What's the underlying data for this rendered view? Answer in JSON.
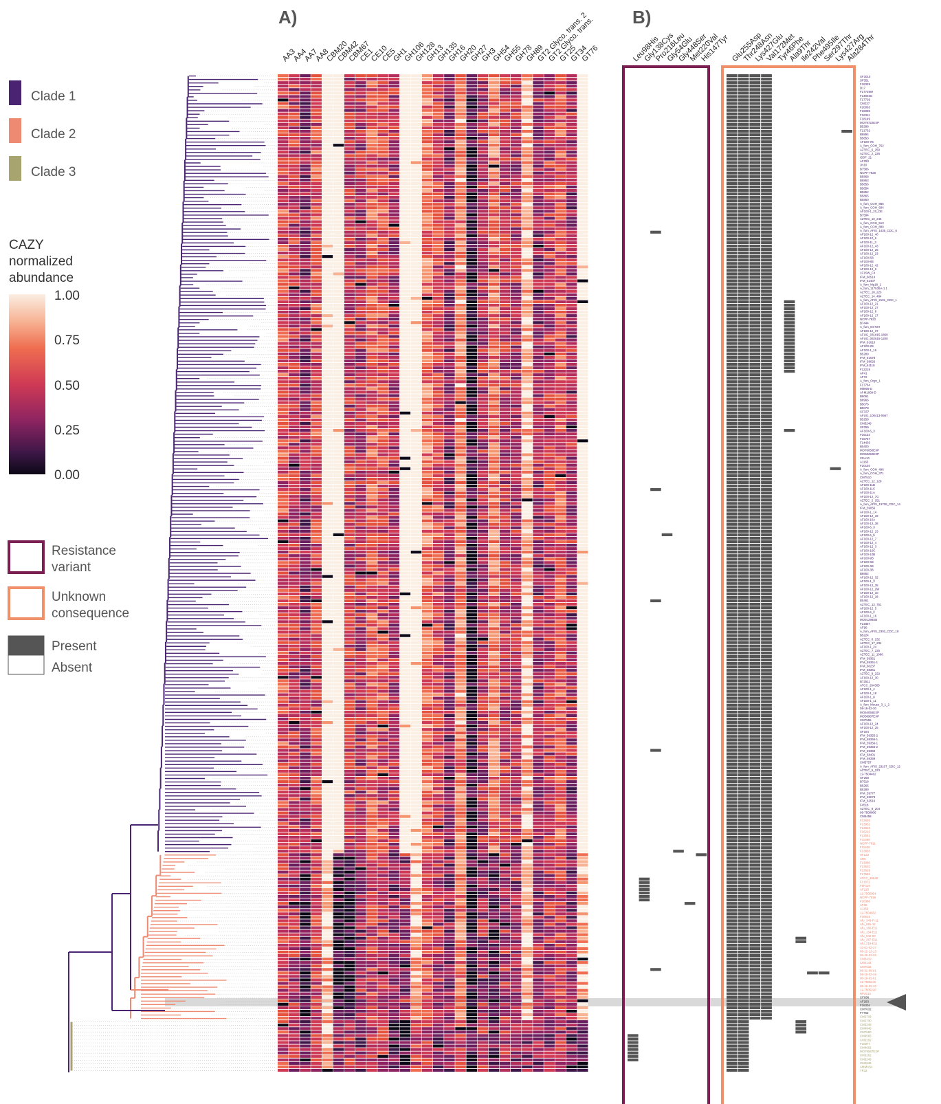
{
  "panels": {
    "a_label": "A)",
    "b_label": "B)"
  },
  "legend": {
    "clades": [
      {
        "label": "Clade 1",
        "color": "#4a2472"
      },
      {
        "label": "Clade 2",
        "color": "#ee8a72"
      },
      {
        "label": "Clade 3",
        "color": "#a8a470"
      }
    ],
    "colorbar_title_lines": [
      "CAZY",
      "normalized",
      "abundance"
    ],
    "colorbar_ticks": [
      "1.00",
      "0.75",
      "0.50",
      "0.25",
      "0.00"
    ],
    "box_legend": [
      {
        "lines": [
          "Resistance",
          "variant"
        ],
        "color": "#7b1f52"
      },
      {
        "lines": [
          "Unknown",
          "consequence"
        ],
        "color": "#f0906a"
      }
    ],
    "presence": [
      {
        "label": "Present",
        "color": "#555555"
      },
      {
        "label": "Absent",
        "color": "#ffffff"
      }
    ]
  },
  "colors": {
    "clade1": "#4a2472",
    "clade2": "#ee8a72",
    "clade3": "#a8a470",
    "resistance_box": "#7b1f52",
    "unknown_box": "#f0906a",
    "present": "#555555",
    "highlight_band": "#d9d9d9",
    "arrow": "#555555"
  },
  "heatmap": {
    "columns": [
      "AA3",
      "AA4",
      "AA7",
      "AA8",
      "CBM20",
      "CBM42",
      "CBM67",
      "CE1",
      "CE10",
      "CE5",
      "GH1",
      "GH106",
      "GH128",
      "GH13",
      "GH135",
      "GH16",
      "GH20",
      "GH27",
      "GH3",
      "GH54",
      "GH55",
      "GH78",
      "GH89",
      "GT2 Glyco. trans. 2",
      "GT2 Glyco. trans.",
      "GT25",
      "GT34",
      "GT76"
    ]
  },
  "resistance_variants": {
    "columns": [
      "Leu98His",
      "Gly138Cys",
      "Pro216Leu",
      "Gly54Glu",
      "Gly448Ser",
      "Met220Val",
      "His147Tyr"
    ]
  },
  "unknown_variants": {
    "columns": [
      "Glu255Asp",
      "Thr248Asn",
      "Lys427Glu",
      "Val172Met",
      "Tyr46Phe",
      "Ala9Thr",
      "Ile242Val",
      "Phe495Ile",
      "Ser297Thr",
      "Lys427Arg",
      "Ala284Thr"
    ]
  },
  "tree": {
    "clade_sizes": [
      224,
      48,
      15
    ]
  },
  "isolates": {
    "clade1": [
      "SF3010",
      "SF351",
      "F18329",
      "D17",
      "F17729W",
      "F14946G",
      "F17729",
      "CM237",
      "F20063",
      "F18085",
      "F16311",
      "F18149",
      "MO78722EXP",
      "B5288",
      "F21732",
      "B8894",
      "B5853",
      "AF100-7B",
      "A_fum_COH_762",
      "AZTEC_6_250",
      "AZTEC_2_226",
      "ISSF_21",
      "AF293",
      "JN10",
      "B7586",
      "NCPF-7820",
      "B5868",
      "B5863",
      "B5856",
      "B5854",
      "B5852",
      "B5865",
      "B5860",
      "A_fum_COH_885",
      "A_fum_COH_694",
      "AF100-1_20_OE",
      "B7594",
      "AZTEC_10_245",
      "A_fum_COH_513",
      "A_fum_COH_880",
      "A_fum_AFIS_1435_CDC_6",
      "AF100-12_40",
      "AF100-10_5",
      "AF100-11_3",
      "AF100-12_43",
      "AF100-12_25",
      "AF100-12_23",
      "AF100-5B",
      "AF100-8B",
      "AF100-12_42",
      "AF100-12_9",
      "1F1SW_F4",
      "IFM_60514",
      "IFM_61407",
      "A_fum_Mg18_1",
      "A_fum_117535A-1.1",
      "AZTEC_18_223",
      "AZTEC_14_484",
      "A_fum_AFIS_2101_CDC_1",
      "AF100-12_21",
      "AF100-12_27",
      "AF100-12_8",
      "AF100-12_17",
      "NCPF-7822",
      "B7444",
      "A_fum_84-NIH",
      "AF100-12_37",
      "AFUG_031815-1869",
      "AFUG_082615-1200",
      "IFM_61610",
      "AF100-2B",
      "AF100-1_15",
      "B5289",
      "IFM_61578",
      "IFM_58026",
      "IFM_61118",
      "F12219",
      "AF41",
      "AF72",
      "A_fum_Orgn_1",
      "F17764",
      "M8865-D",
      "Af-M1009-D",
      "B6061",
      "B8966",
      "B5076",
      "B5078",
      "CF337",
      "AFUG_100413-0667",
      "B5258",
      "CM3248",
      "SF055",
      "AF100-6_3",
      "F16134",
      "F15767",
      "F14403",
      "B5400",
      "MO76050EXP",
      "MO68250EXP",
      "CEA10",
      "A1163",
      "F20140",
      "A_fum_COH_496",
      "A_fum_COH_371",
      "CM7510",
      "AZTEC_12_128",
      "AF100-11B",
      "AF100-11C",
      "AF100-11A",
      "AF100-12_7G",
      "AZTEC_2_251",
      "A_fum_AFIS_13708_CDC_14",
      "IFM_59056",
      "AF100-1_14",
      "AF100-12_19",
      "AF100-10A",
      "AF100-12_38",
      "AF100-6_3",
      "AF100-12_13",
      "AF100-6_5",
      "AF100-12_7",
      "AF100-12_4",
      "AF100-12_3",
      "AF100-10C",
      "AF100-10B",
      "AF100-9B",
      "AF100-6B",
      "AF100-4B",
      "AF100-3B",
      "B8852",
      "AF100-12_32",
      "AF100-1_3",
      "AF100-12_35",
      "AF100-12_2W",
      "AF100-12_10",
      "AF100-12_18",
      "B5461",
      "AZTEC_13_751",
      "AF100-12_5",
      "AF100-6_2",
      "AF100-1_16",
      "MO91298SB",
      "F21857",
      "AF90",
      "A_fum_AFIS_2302_CDC_18",
      "B5224",
      "AZTEC_6_232",
      "AZTEC_17_234",
      "AF100-1_24",
      "AZTEC_7_225",
      "AZTEC_11_1066",
      "IFM_59361",
      "IFM_59361-1",
      "IFM_60237",
      "IFM_58361",
      "AZTEC_9_222",
      "AF100-12_30",
      "B72511",
      "ATCC_204305",
      "AF100-1_4",
      "AF100-1_18",
      "AF100-1_8",
      "AF100-1_11",
      "A_fum_Mouse_3_1_2",
      "08-19-02-30",
      "MO54056EXP",
      "MO58987EXP",
      "CM7555",
      "AF100-12_24",
      "AF100-12_25",
      "SF194",
      "IFM_59355-2",
      "IFM_59355-1",
      "IFM_59356-1",
      "IFM_59356-2",
      "IFM_59359",
      "IFM_58401",
      "IFM_59359",
      "CM5757",
      "A_fum_AFIS_23107_CDC_12",
      "AZTEC_5_223",
      "12-7504462",
      "SF258",
      "B7518",
      "B5265",
      "B5289",
      "IFM_59777",
      "IFM_59073",
      "IFM_62516",
      "F4518",
      "AZTEC_8_204",
      "09-7500806",
      "CM6458"
    ],
    "clade2": [
      "F12636",
      "F13952",
      "F13619",
      "F16216",
      "F13541",
      "F11698",
      "NCPF-7811",
      "F11628",
      "F13855",
      "SF123",
      "AR5",
      "F13080",
      "F13602",
      "F13619",
      "F17582",
      "ATCC_46645",
      "F21572",
      "F6F119",
      "AF210",
      "12-7505054",
      "NCPF-7816",
      "F18386",
      "AF65",
      "A1156",
      "12-7504652",
      "F16515",
      "Afu_343-P-11",
      "Afu_591-12",
      "Afu_166-E11",
      "Afu_154-E11",
      "Afu_942-09",
      "Afu_257-E11",
      "Afu_218-E11",
      "10-01-02-27",
      "08-12-12-13",
      "08-36-03-25",
      "CM5419",
      "CM2141",
      "CM7632",
      "08-31-08-91",
      "08-19-02-46",
      "08-19-02-61",
      "12-7505446",
      "08-19-02-10",
      "12-7505220",
      "RP2014"
    ],
    "clade2_flagged": [
      "CF098",
      "AF293",
      "F18304",
      "CM7632",
      "F7763"
    ],
    "clade3": [
      "CM2733",
      "CM2730",
      "CM3249",
      "CM4946",
      "CM7560",
      "CM4565",
      "CM5292",
      "F16877",
      "CM4602",
      "MO79587EXP",
      "CM3262",
      "CM3249",
      "CM4946",
      "AMMAS4",
      "TP32"
    ]
  }
}
